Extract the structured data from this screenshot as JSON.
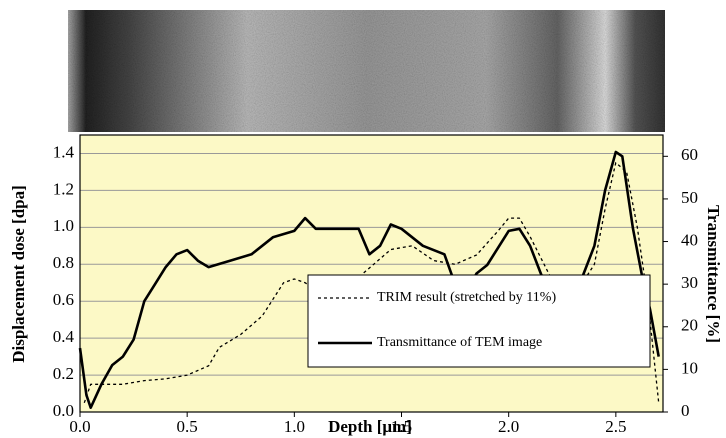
{
  "chart_data": {
    "type": "line",
    "xlabel": "Depth [μm]",
    "ylabel": "Displacement dose [dpa]",
    "y2label": "Transmittance [%]",
    "xlim": [
      0,
      2.72
    ],
    "xticks": [
      {
        "value": 0,
        "label": "0.0"
      },
      0.5,
      {
        "value": 1,
        "label": "1.0"
      },
      1.5,
      {
        "value": 2,
        "label": "2.0"
      },
      2.5
    ],
    "ylim": [
      0,
      1.5
    ],
    "yticks": [
      {
        "value": 0,
        "label": "0.0"
      },
      0.2,
      0.4,
      0.6,
      0.8,
      {
        "value": 1,
        "label": "1.0"
      },
      1.2,
      1.4
    ],
    "y2lim": [
      0,
      65
    ],
    "y2ticks": [
      0,
      10,
      20,
      30,
      40,
      50,
      60
    ],
    "grid": true,
    "background": "#fcf9c6",
    "series": [
      {
        "name": "TRIM result (stretched by 11%)",
        "color": "#000000",
        "dash": true,
        "x": [
          0.02,
          0.05,
          0.1,
          0.2,
          0.3,
          0.4,
          0.5,
          0.6,
          0.65,
          0.75,
          0.85,
          0.95,
          1.0,
          1.05,
          1.15,
          1.25,
          1.35,
          1.45,
          1.55,
          1.65,
          1.75,
          1.85,
          1.95,
          2.0,
          2.05,
          2.1,
          2.2,
          2.3,
          2.4,
          2.45,
          2.5,
          2.55,
          2.6,
          2.65,
          2.7
        ],
        "values": [
          0.05,
          0.15,
          0.15,
          0.15,
          0.17,
          0.18,
          0.2,
          0.25,
          0.35,
          0.42,
          0.52,
          0.7,
          0.72,
          0.7,
          0.62,
          0.68,
          0.78,
          0.88,
          0.9,
          0.82,
          0.8,
          0.85,
          0.98,
          1.05,
          1.05,
          0.95,
          0.72,
          0.62,
          0.8,
          1.1,
          1.35,
          1.3,
          1.0,
          0.6,
          0.05
        ]
      },
      {
        "name": "Transmittance of TEM image",
        "color": "#000000",
        "axis": "y2",
        "x": [
          0,
          0.03,
          0.05,
          0.1,
          0.15,
          0.2,
          0.25,
          0.3,
          0.35,
          0.4,
          0.45,
          0.5,
          0.55,
          0.6,
          0.7,
          0.8,
          0.9,
          1.0,
          1.05,
          1.1,
          1.2,
          1.3,
          1.35,
          1.4,
          1.45,
          1.5,
          1.6,
          1.7,
          1.75,
          1.8,
          1.85,
          1.9,
          2.0,
          2.05,
          2.1,
          2.15,
          2.2,
          2.25,
          2.3,
          2.35,
          2.4,
          2.45,
          2.5,
          2.53,
          2.58,
          2.62,
          2.66,
          2.7
        ],
        "values": [
          15,
          4,
          1,
          6.5,
          11,
          13,
          17,
          26,
          30,
          34,
          37,
          38,
          35.5,
          34,
          35.5,
          37,
          41,
          42.5,
          45.5,
          43,
          43,
          43,
          37,
          39,
          44,
          43,
          39,
          37,
          30,
          28,
          32.5,
          34.5,
          42.5,
          43,
          39,
          32.5,
          27,
          29.5,
          26,
          32.5,
          39,
          52,
          61,
          60,
          43,
          32.5,
          24,
          13
        ]
      }
    ]
  }
}
